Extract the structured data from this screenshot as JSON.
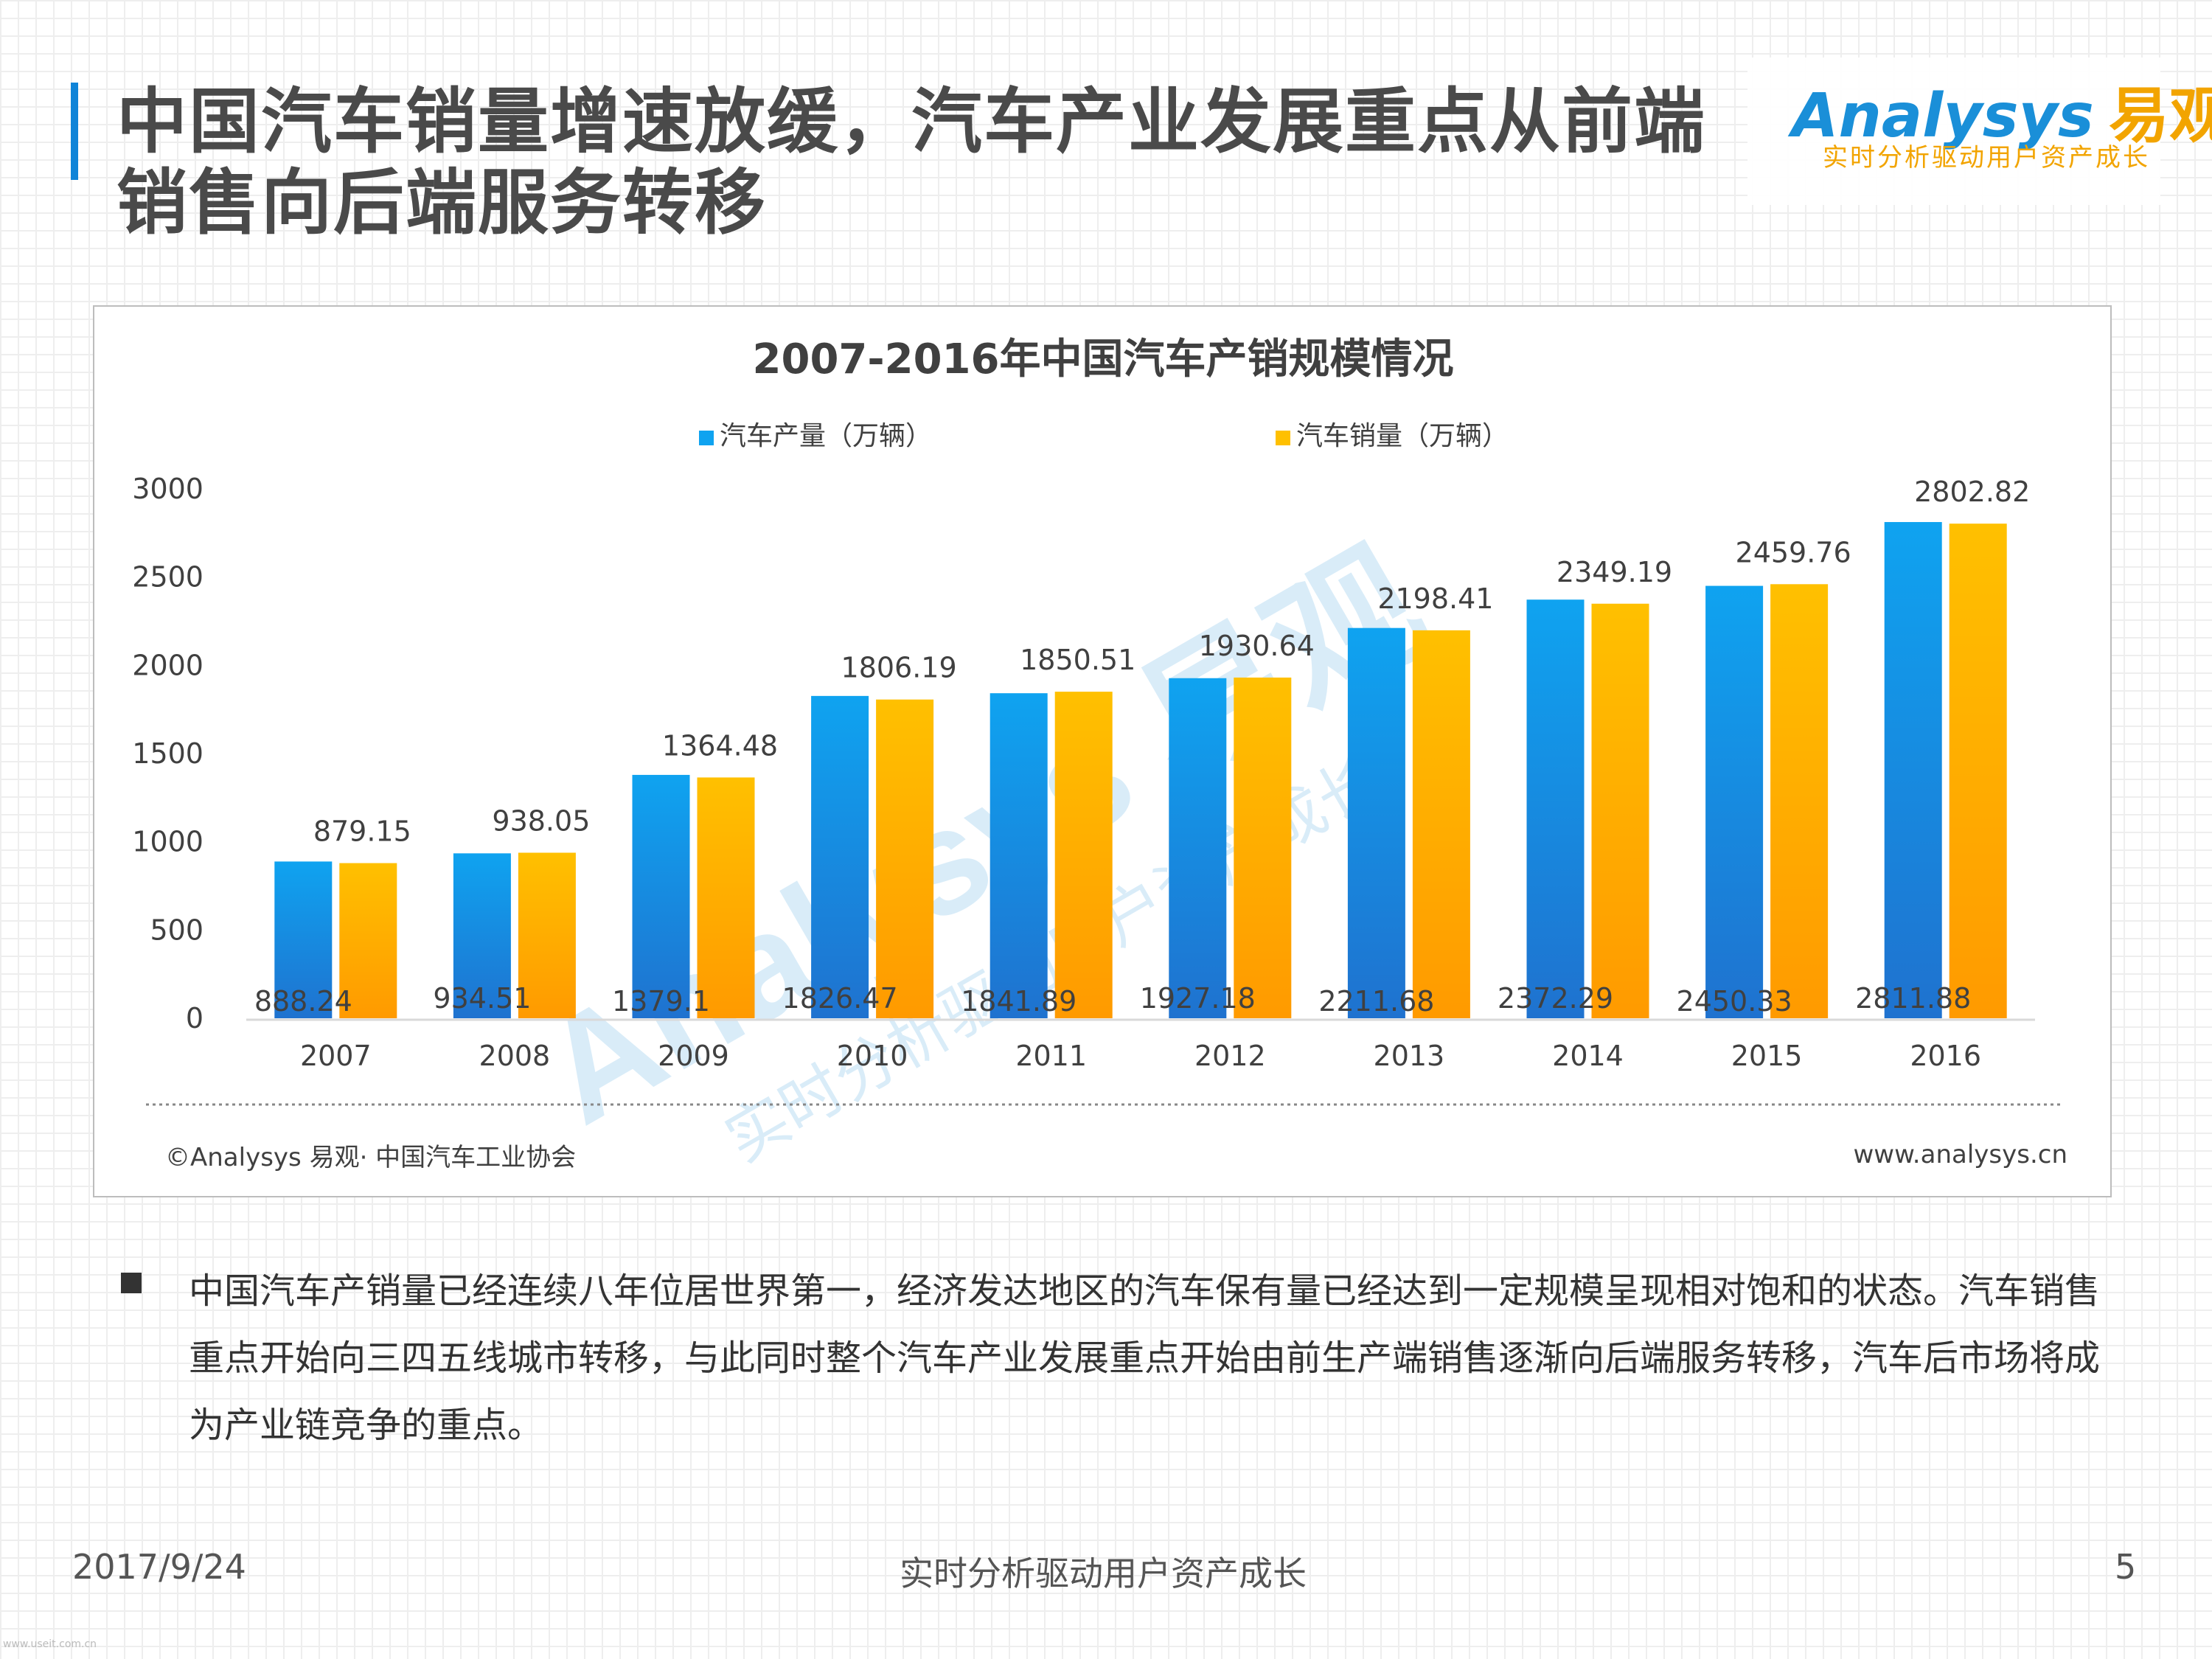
{
  "slide": {
    "title": "中国汽车销量增速放缓，汽车产业发展重点从前端销售向后端服务转移",
    "logo_brand": "nalysys",
    "logo_brand_prefix": "A",
    "logo_cn": "易观",
    "logo_tagline": "实时分析驱动用户资产成长",
    "paragraph": "中国汽车产销量已经连续八年位居世界第一，经济发达地区的汽车保有量已经达到一定规模呈现相对饱和的状态。汽车销售重点开始向三四五线城市转移，与此同时整个汽车产业发展重点开始由前生产端销售逐渐向后端服务转移，汽车后市场将成为产业链竞争的重点。",
    "footer_date": "2017/9/24",
    "footer_center": "实时分析驱动用户资产成长",
    "page_number": "5",
    "tiny_mark": "www.useit.com.cn"
  },
  "chart_data": {
    "type": "bar",
    "title": "2007-2016年中国汽车产销规模情况",
    "categories": [
      "2007",
      "2008",
      "2009",
      "2010",
      "2011",
      "2012",
      "2013",
      "2014",
      "2015",
      "2016"
    ],
    "series": [
      {
        "name": "汽车产量（万辆）",
        "values": [
          888.24,
          934.51,
          1379.1,
          1826.47,
          1841.89,
          1927.18,
          2211.68,
          2372.29,
          2450.33,
          2811.88
        ],
        "labels": [
          "888.24",
          "934.51",
          "1379.1",
          "1826.47",
          "1841.89",
          "1927.18",
          "2211.68",
          "2372.29",
          "2450.33",
          "2811.88"
        ],
        "color": "#0fa3f0",
        "color_bottom": "#1f72cf"
      },
      {
        "name": "汽车销量（万辆）",
        "values": [
          879.15,
          938.05,
          1364.48,
          1806.19,
          1850.51,
          1930.64,
          2198.41,
          2349.19,
          2459.76,
          2802.82
        ],
        "labels": [
          "879.15",
          "938.05",
          "1364.48",
          "1806.19",
          "1850.51",
          "1930.64",
          "2198.41",
          "2349.19",
          "2459.76",
          "2802.82"
        ],
        "color": "#ffc000",
        "color_bottom": "#ff9a00"
      }
    ],
    "y_ticks": [
      "0",
      "500",
      "1000",
      "1500",
      "2000",
      "2500",
      "3000"
    ],
    "ylim": [
      0,
      3000
    ],
    "source": "©Analysys 易观· 中国汽车工业协会",
    "website": "www.analysys.cn",
    "watermark_brand": "Analysys 易观",
    "watermark_tagline": "实时分析驱动用户资产成长",
    "legend_position": "top-center",
    "grid": false
  }
}
